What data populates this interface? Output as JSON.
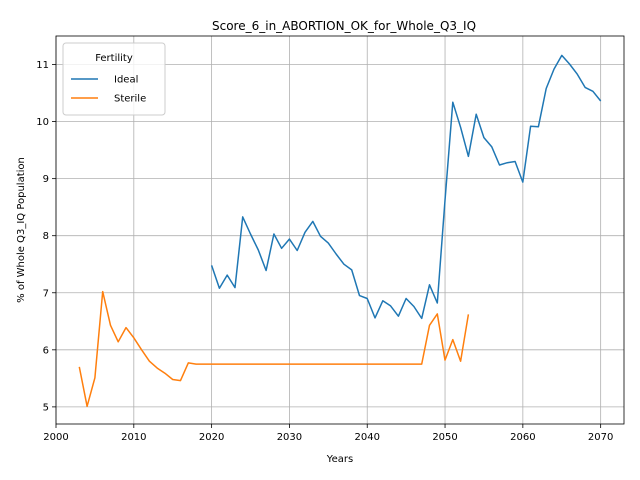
{
  "chart_data": {
    "type": "line",
    "title": "Score_6_in_ABORTION_OK_for_Whole_Q3_IQ",
    "xlabel": "Years",
    "ylabel": "% of Whole Q3_IQ Population",
    "xlim": [
      2000,
      2073
    ],
    "ylim": [
      4.7,
      11.5
    ],
    "xticks": [
      2000,
      2010,
      2020,
      2030,
      2040,
      2050,
      2060,
      2070
    ],
    "yticks": [
      5,
      6,
      7,
      8,
      9,
      10,
      11
    ],
    "grid": true,
    "legend": {
      "title": "Fertility",
      "placement": "top-left"
    },
    "series": [
      {
        "name": "Ideal",
        "color": "#1f77b4",
        "x": [
          2020,
          2021,
          2022,
          2023,
          2024,
          2025,
          2026,
          2027,
          2028,
          2029,
          2030,
          2031,
          2032,
          2033,
          2034,
          2035,
          2036,
          2037,
          2038,
          2039,
          2040,
          2041,
          2042,
          2043,
          2044,
          2045,
          2046,
          2047,
          2048,
          2049,
          2050,
          2051,
          2052,
          2053,
          2054,
          2055,
          2056,
          2057,
          2058,
          2059,
          2060,
          2061,
          2062,
          2063,
          2064,
          2065,
          2066,
          2067,
          2068,
          2069,
          2070
        ],
        "y": [
          7.48,
          7.08,
          7.31,
          7.09,
          8.33,
          8.03,
          7.75,
          7.39,
          8.03,
          7.78,
          7.94,
          7.74,
          8.06,
          8.25,
          7.99,
          7.87,
          7.68,
          7.5,
          7.4,
          6.95,
          6.9,
          6.56,
          6.86,
          6.77,
          6.59,
          6.9,
          6.76,
          6.55,
          7.14,
          6.82,
          8.62,
          10.34,
          9.9,
          9.39,
          10.13,
          9.72,
          9.56,
          9.24,
          9.28,
          9.3,
          8.94,
          9.92,
          9.91,
          10.58,
          10.92,
          11.16,
          11.01,
          10.83,
          10.6,
          10.53,
          10.36
        ]
      },
      {
        "name": "Sterile",
        "color": "#ff7f0e",
        "x": [
          2003,
          2004,
          2005,
          2006,
          2007,
          2008,
          2009,
          2010,
          2011,
          2012,
          2013,
          2014,
          2015,
          2016,
          2017,
          2018,
          2019,
          2020,
          2021,
          2022,
          2023,
          2024,
          2025,
          2026,
          2027,
          2028,
          2029,
          2030,
          2031,
          2032,
          2033,
          2034,
          2035,
          2036,
          2037,
          2038,
          2039,
          2040,
          2041,
          2042,
          2043,
          2044,
          2045,
          2046,
          2047,
          2048,
          2049,
          2050,
          2051,
          2052,
          2053
        ],
        "y": [
          5.7,
          5.01,
          5.51,
          7.02,
          6.43,
          6.14,
          6.39,
          6.21,
          6.0,
          5.8,
          5.68,
          5.59,
          5.48,
          5.46,
          5.77,
          5.75,
          5.75,
          5.75,
          5.75,
          5.75,
          5.75,
          5.75,
          5.75,
          5.75,
          5.75,
          5.75,
          5.75,
          5.75,
          5.75,
          5.75,
          5.75,
          5.75,
          5.75,
          5.75,
          5.75,
          5.75,
          5.75,
          5.75,
          5.75,
          5.75,
          5.75,
          5.75,
          5.75,
          5.75,
          5.75,
          6.43,
          6.63,
          5.82,
          6.18,
          5.8,
          6.62
        ]
      }
    ]
  }
}
